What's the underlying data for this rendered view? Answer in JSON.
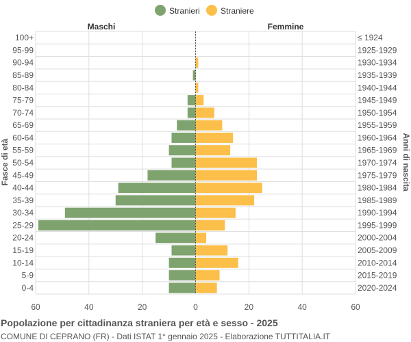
{
  "chart_data": {
    "type": "bar",
    "orientation": "horizontal",
    "legend": {
      "position": "top-center",
      "items": [
        "Stranieri",
        "Straniere"
      ]
    },
    "left_header": "Maschi",
    "right_header": "Femmine",
    "ylabel_left": "Fasce di età",
    "ylabel_right": "Anni di nascita",
    "x_ticks": [
      "60",
      "40",
      "20",
      "0",
      "20",
      "40",
      "60"
    ],
    "xlim": [
      -60,
      60
    ],
    "grid": true,
    "colors": {
      "male": "#7fa36f",
      "female": "#fbbf4a",
      "grid": "#dddddd"
    },
    "categories": [
      "100+",
      "95-99",
      "90-94",
      "85-89",
      "80-84",
      "75-79",
      "70-74",
      "65-69",
      "60-64",
      "55-59",
      "50-54",
      "45-49",
      "40-44",
      "35-39",
      "30-34",
      "25-29",
      "20-24",
      "15-19",
      "10-14",
      "5-9",
      "0-4"
    ],
    "birth_years": [
      "≤ 1924",
      "1925-1929",
      "1930-1934",
      "1935-1939",
      "1940-1944",
      "1945-1949",
      "1950-1954",
      "1955-1959",
      "1960-1964",
      "1965-1969",
      "1970-1974",
      "1975-1979",
      "1980-1984",
      "1985-1989",
      "1990-1994",
      "1995-1999",
      "2000-2004",
      "2005-2009",
      "2010-2014",
      "2015-2019",
      "2020-2024"
    ],
    "series": [
      {
        "name": "Stranieri",
        "values": [
          0,
          0,
          0,
          1,
          0,
          3,
          3,
          7,
          9,
          10,
          9,
          18,
          29,
          30,
          49,
          59,
          15,
          9,
          10,
          10,
          10
        ]
      },
      {
        "name": "Straniere",
        "values": [
          0,
          0,
          1,
          0,
          1,
          3,
          7,
          10,
          14,
          13,
          23,
          23,
          25,
          22,
          15,
          11,
          4,
          12,
          16,
          9,
          8
        ]
      }
    ]
  },
  "caption": {
    "title": "Popolazione per cittadinanza straniera per età e sesso - 2025",
    "subtitle": "COMUNE DI CEPRANO (FR) - Dati ISTAT 1° gennaio 2025 - Elaborazione TUTTITALIA.IT"
  }
}
